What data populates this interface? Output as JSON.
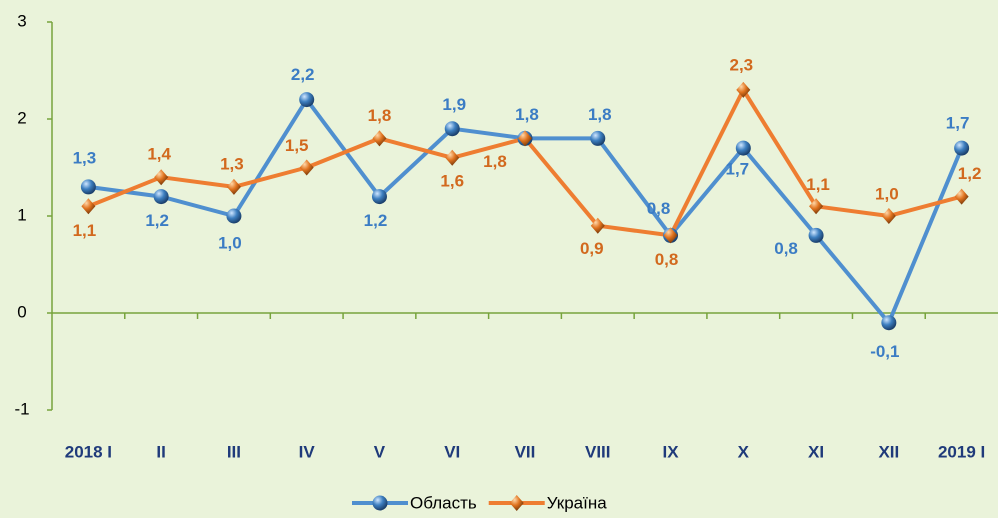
{
  "chart_data": {
    "type": "line",
    "categories": [
      "2018 I",
      "II",
      "III",
      "IV",
      "V",
      "VI",
      "VII",
      "VIII",
      "IX",
      "X",
      "XI",
      "XII",
      "2019 I"
    ],
    "series": [
      {
        "name": "Область",
        "color": "#4f8fcf",
        "values": [
          1.3,
          1.2,
          1.0,
          2.2,
          1.2,
          1.9,
          1.8,
          1.8,
          0.8,
          1.7,
          0.8,
          -0.1,
          1.7
        ],
        "value_labels": [
          "1,3",
          "1,2",
          "1,0",
          "2,2",
          "1,2",
          "1,9",
          "1,8",
          "1,8",
          "0,8",
          "1,7",
          "0,8",
          "-0,1",
          "1,7"
        ]
      },
      {
        "name": "Україна",
        "color": "#ee7d31",
        "values": [
          1.1,
          1.4,
          1.3,
          1.5,
          1.8,
          1.6,
          1.8,
          0.9,
          0.8,
          2.3,
          1.1,
          1.0,
          1.2
        ],
        "value_labels": [
          "1,1",
          "1,4",
          "1,3",
          "1,5",
          "1,8",
          "1,6",
          "1,8",
          "0,9",
          "0,8",
          "2,3",
          "1,1",
          "1,0",
          "1,2"
        ]
      }
    ],
    "ylim": [
      -1,
      3
    ],
    "yticks": [
      -1,
      0,
      1,
      2,
      3
    ],
    "legend": "bottom"
  }
}
